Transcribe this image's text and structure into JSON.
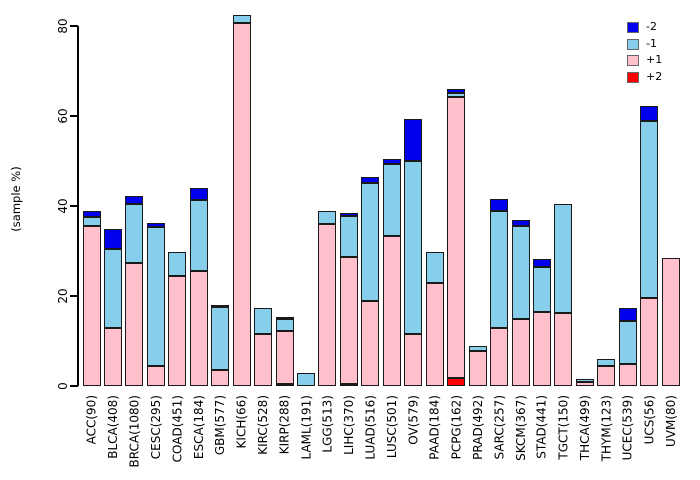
{
  "chart_data": {
    "type": "bar",
    "stacked": true,
    "title": "",
    "xlabel": "",
    "ylabel": "(sample %)",
    "ylim": [
      0,
      80
    ],
    "yticks": [
      0,
      20,
      40,
      60,
      80
    ],
    "grid": false,
    "bar_border_color": "#1a1a1a",
    "legend_position": "top-right",
    "stack_order_bottom_to_top": [
      "+2",
      "+1",
      "-1",
      "-2"
    ],
    "categories": [
      "ACC(90)",
      "BLCA(408)",
      "BRCA(1080)",
      "CESC(295)",
      "COAD(451)",
      "ESCA(184)",
      "GBM(577)",
      "KICH(66)",
      "KIRC(528)",
      "KIRP(288)",
      "LAML(191)",
      "LGG(513)",
      "LIHC(370)",
      "LUAD(516)",
      "LUSC(501)",
      "OV(579)",
      "PAAD(184)",
      "PCPG(162)",
      "PRAD(492)",
      "SARC(257)",
      "SKCM(367)",
      "STAD(441)",
      "TGCT(150)",
      "THCA(499)",
      "THYM(123)",
      "UCEC(539)",
      "UCS(56)",
      "UVM(80)"
    ],
    "series": [
      {
        "name": "+2",
        "color": "#FF0000",
        "values": [
          0,
          0,
          0,
          0,
          0,
          0,
          0,
          0,
          0,
          0.5,
          0,
          0,
          0.4,
          0,
          0,
          0,
          0,
          1.7,
          0,
          0,
          0,
          0,
          0,
          0,
          0,
          0,
          0,
          0
        ]
      },
      {
        "name": "+1",
        "color": "#FFC0CB",
        "values": [
          35.5,
          13,
          27.3,
          4.5,
          24.5,
          25.6,
          3.5,
          80.7,
          11.5,
          11.8,
          0,
          36,
          28.2,
          18.8,
          33.3,
          11.5,
          23,
          62.6,
          7.8,
          13,
          14.8,
          16.4,
          16.2,
          0.8,
          4.4,
          5,
          19.5,
          28.5
        ]
      },
      {
        "name": "-1",
        "color": "#87CEEB",
        "values": [
          2,
          17.5,
          13.2,
          30.8,
          5.3,
          15.8,
          14,
          1.8,
          5.8,
          2.5,
          2.9,
          2.8,
          9.1,
          26.3,
          16,
          38.4,
          6.8,
          0.9,
          1,
          26,
          20.7,
          10,
          24.2,
          0.7,
          1.6,
          9.4,
          39.3,
          0
        ]
      },
      {
        "name": "-2",
        "color": "#0000EE",
        "values": [
          1.5,
          4.3,
          1.7,
          0.9,
          0,
          2.7,
          0.6,
          0,
          0,
          0.5,
          0,
          0,
          0.7,
          1.3,
          1.1,
          9.4,
          0,
          0.8,
          0,
          2.5,
          1.3,
          1.8,
          0,
          0,
          0,
          3,
          3.4,
          0
        ]
      }
    ],
    "legend": [
      {
        "label": "-2",
        "color": "#0000EE"
      },
      {
        "label": "-1",
        "color": "#87CEEB"
      },
      {
        "label": "+1",
        "color": "#FFC0CB"
      },
      {
        "label": "+2",
        "color": "#FF0000"
      }
    ]
  }
}
